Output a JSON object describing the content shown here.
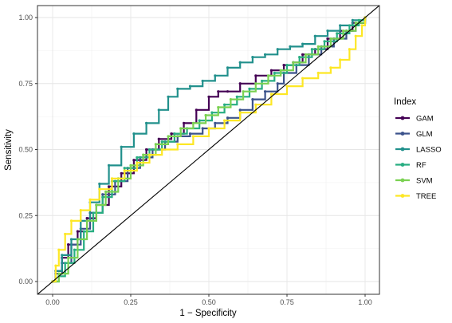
{
  "chart_data": {
    "type": "line",
    "xlabel": "1 − Specificity",
    "ylabel": "Sensitivity",
    "xlim": [
      0,
      1
    ],
    "ylim": [
      0,
      1
    ],
    "x_ticks": [
      "0.00",
      "0.25",
      "0.50",
      "0.75",
      "1.00"
    ],
    "y_ticks": [
      "0.00",
      "0.25",
      "0.50",
      "0.75",
      "1.00"
    ],
    "grid": true,
    "legend": {
      "title": "Index",
      "placement": "right"
    },
    "reference_line": {
      "from": [
        0,
        0
      ],
      "to": [
        1,
        1
      ],
      "color": "#000000"
    },
    "series": [
      {
        "name": "GAM",
        "color": "#440154",
        "points": [
          [
            0,
            0
          ],
          [
            0.01,
            0.04
          ],
          [
            0.03,
            0.09
          ],
          [
            0.05,
            0.14
          ],
          [
            0.08,
            0.19
          ],
          [
            0.11,
            0.24
          ],
          [
            0.14,
            0.29
          ],
          [
            0.18,
            0.36
          ],
          [
            0.22,
            0.41
          ],
          [
            0.26,
            0.46
          ],
          [
            0.3,
            0.5
          ],
          [
            0.34,
            0.54
          ],
          [
            0.38,
            0.56
          ],
          [
            0.42,
            0.6
          ],
          [
            0.46,
            0.65
          ],
          [
            0.5,
            0.7
          ],
          [
            0.53,
            0.72
          ],
          [
            0.56,
            0.72
          ],
          [
            0.6,
            0.75
          ],
          [
            0.65,
            0.78
          ],
          [
            0.7,
            0.8
          ],
          [
            0.74,
            0.82
          ],
          [
            0.77,
            0.83
          ],
          [
            0.8,
            0.86
          ],
          [
            0.84,
            0.88
          ],
          [
            0.88,
            0.92
          ],
          [
            0.92,
            0.95
          ],
          [
            0.96,
            0.98
          ],
          [
            1,
            1
          ]
        ]
      },
      {
        "name": "GLM",
        "color": "#3b528b",
        "points": [
          [
            0,
            0
          ],
          [
            0.01,
            0.03
          ],
          [
            0.03,
            0.07
          ],
          [
            0.06,
            0.14
          ],
          [
            0.09,
            0.2
          ],
          [
            0.12,
            0.26
          ],
          [
            0.16,
            0.33
          ],
          [
            0.2,
            0.38
          ],
          [
            0.24,
            0.43
          ],
          [
            0.28,
            0.47
          ],
          [
            0.32,
            0.5
          ],
          [
            0.36,
            0.53
          ],
          [
            0.4,
            0.55
          ],
          [
            0.44,
            0.56
          ],
          [
            0.48,
            0.58
          ],
          [
            0.52,
            0.6
          ],
          [
            0.56,
            0.62
          ],
          [
            0.6,
            0.65
          ],
          [
            0.64,
            0.69
          ],
          [
            0.68,
            0.72
          ],
          [
            0.72,
            0.75
          ],
          [
            0.74,
            0.79
          ],
          [
            0.78,
            0.82
          ],
          [
            0.82,
            0.86
          ],
          [
            0.86,
            0.89
          ],
          [
            0.9,
            0.92
          ],
          [
            0.94,
            0.95
          ],
          [
            0.97,
            0.98
          ],
          [
            1,
            1
          ]
        ]
      },
      {
        "name": "LASSO",
        "color": "#21908c",
        "points": [
          [
            0,
            0
          ],
          [
            0.01,
            0.04
          ],
          [
            0.03,
            0.1
          ],
          [
            0.06,
            0.16
          ],
          [
            0.09,
            0.23
          ],
          [
            0.12,
            0.3
          ],
          [
            0.15,
            0.37
          ],
          [
            0.18,
            0.44
          ],
          [
            0.22,
            0.51
          ],
          [
            0.26,
            0.56
          ],
          [
            0.3,
            0.6
          ],
          [
            0.34,
            0.65
          ],
          [
            0.37,
            0.7
          ],
          [
            0.4,
            0.73
          ],
          [
            0.44,
            0.74
          ],
          [
            0.48,
            0.76
          ],
          [
            0.52,
            0.78
          ],
          [
            0.56,
            0.81
          ],
          [
            0.6,
            0.83
          ],
          [
            0.64,
            0.85
          ],
          [
            0.68,
            0.86
          ],
          [
            0.72,
            0.88
          ],
          [
            0.76,
            0.89
          ],
          [
            0.8,
            0.9
          ],
          [
            0.84,
            0.93
          ],
          [
            0.88,
            0.95
          ],
          [
            0.92,
            0.97
          ],
          [
            0.96,
            0.99
          ],
          [
            1,
            1
          ]
        ]
      },
      {
        "name": "RF",
        "color": "#27ad81",
        "points": [
          [
            0,
            0
          ],
          [
            0.02,
            0.02
          ],
          [
            0.04,
            0.07
          ],
          [
            0.07,
            0.12
          ],
          [
            0.1,
            0.19
          ],
          [
            0.13,
            0.26
          ],
          [
            0.16,
            0.32
          ],
          [
            0.19,
            0.38
          ],
          [
            0.23,
            0.43
          ],
          [
            0.27,
            0.47
          ],
          [
            0.31,
            0.5
          ],
          [
            0.35,
            0.53
          ],
          [
            0.39,
            0.56
          ],
          [
            0.43,
            0.58
          ],
          [
            0.47,
            0.61
          ],
          [
            0.51,
            0.64
          ],
          [
            0.55,
            0.67
          ],
          [
            0.59,
            0.7
          ],
          [
            0.63,
            0.73
          ],
          [
            0.67,
            0.76
          ],
          [
            0.71,
            0.79
          ],
          [
            0.75,
            0.82
          ],
          [
            0.79,
            0.85
          ],
          [
            0.83,
            0.88
          ],
          [
            0.87,
            0.91
          ],
          [
            0.91,
            0.94
          ],
          [
            0.95,
            0.97
          ],
          [
            0.98,
            0.99
          ],
          [
            1,
            1
          ]
        ]
      },
      {
        "name": "SVM",
        "color": "#7ad151",
        "points": [
          [
            0,
            0
          ],
          [
            0.02,
            0.03
          ],
          [
            0.05,
            0.09
          ],
          [
            0.08,
            0.16
          ],
          [
            0.11,
            0.23
          ],
          [
            0.14,
            0.29
          ],
          [
            0.17,
            0.34
          ],
          [
            0.21,
            0.39
          ],
          [
            0.25,
            0.44
          ],
          [
            0.29,
            0.48
          ],
          [
            0.33,
            0.52
          ],
          [
            0.37,
            0.55
          ],
          [
            0.41,
            0.58
          ],
          [
            0.45,
            0.6
          ],
          [
            0.49,
            0.63
          ],
          [
            0.53,
            0.66
          ],
          [
            0.57,
            0.69
          ],
          [
            0.61,
            0.72
          ],
          [
            0.65,
            0.75
          ],
          [
            0.69,
            0.78
          ],
          [
            0.73,
            0.8
          ],
          [
            0.77,
            0.83
          ],
          [
            0.81,
            0.86
          ],
          [
            0.85,
            0.89
          ],
          [
            0.89,
            0.92
          ],
          [
            0.93,
            0.95
          ],
          [
            0.97,
            0.98
          ],
          [
            1,
            1
          ]
        ]
      },
      {
        "name": "TREE",
        "color": "#fde725",
        "points": [
          [
            0,
            0
          ],
          [
            0.01,
            0.06
          ],
          [
            0.02,
            0.12
          ],
          [
            0.04,
            0.18
          ],
          [
            0.06,
            0.23
          ],
          [
            0.09,
            0.27
          ],
          [
            0.12,
            0.31
          ],
          [
            0.15,
            0.35
          ],
          [
            0.19,
            0.39
          ],
          [
            0.23,
            0.42
          ],
          [
            0.27,
            0.45
          ],
          [
            0.31,
            0.48
          ],
          [
            0.35,
            0.5
          ],
          [
            0.4,
            0.52
          ],
          [
            0.45,
            0.55
          ],
          [
            0.5,
            0.58
          ],
          [
            0.55,
            0.61
          ],
          [
            0.6,
            0.64
          ],
          [
            0.65,
            0.67
          ],
          [
            0.7,
            0.71
          ],
          [
            0.75,
            0.74
          ],
          [
            0.8,
            0.77
          ],
          [
            0.85,
            0.79
          ],
          [
            0.89,
            0.81
          ],
          [
            0.92,
            0.84
          ],
          [
            0.95,
            0.88
          ],
          [
            0.97,
            0.93
          ],
          [
            0.99,
            0.97
          ],
          [
            1,
            1
          ]
        ]
      }
    ]
  }
}
